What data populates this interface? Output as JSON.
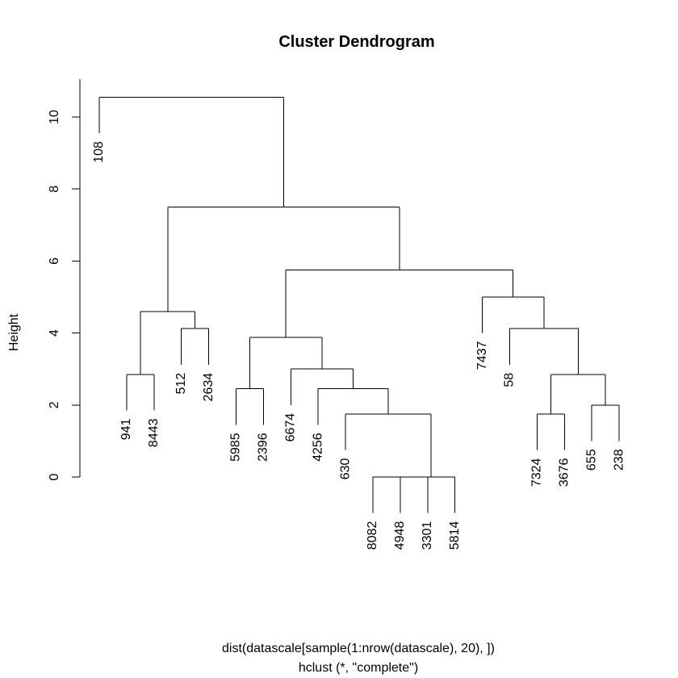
{
  "chart_data": {
    "type": "dendrogram",
    "title": "Cluster Dendrogram",
    "ylabel": "Height",
    "xlabel": "dist(datascale[sample(1:nrow(datascale), 20), ])",
    "sublabel": "hclust (*, \"complete\")",
    "ylim": [
      0,
      10
    ],
    "yticks": [
      {
        "value": 0,
        "label": "0"
      },
      {
        "value": 2,
        "label": "2"
      },
      {
        "value": 4,
        "label": "4"
      },
      {
        "value": 6,
        "label": "6"
      },
      {
        "value": 8,
        "label": "8"
      },
      {
        "value": 10,
        "label": "10"
      }
    ],
    "leaves": [
      "108",
      "941",
      "8443",
      "512",
      "2634",
      "5985",
      "2396",
      "6674",
      "4256",
      "630",
      "8082",
      "4948",
      "3301",
      "5814",
      "7437",
      "58",
      "7324",
      "3676",
      "655",
      "238"
    ],
    "merges": [
      {
        "a": "8082",
        "b": "4948",
        "height": 0.0
      },
      {
        "a": "m1",
        "b": "3301",
        "height": 0.0
      },
      {
        "a": "m2",
        "b": "5814",
        "height": 0.0
      },
      {
        "a": "630",
        "b": "m3",
        "height": 1.75
      },
      {
        "a": "4256",
        "b": "m4",
        "height": 2.45
      },
      {
        "a": "6674",
        "b": "m5",
        "height": 3.0
      },
      {
        "a": "5985",
        "b": "2396",
        "height": 2.45
      },
      {
        "a": "m7",
        "b": "m6",
        "height": 3.88
      },
      {
        "a": "941",
        "b": "8443",
        "height": 2.85
      },
      {
        "a": "512",
        "b": "2634",
        "height": 4.12
      },
      {
        "a": "m9",
        "b": "m10",
        "height": 4.6
      },
      {
        "a": "7324",
        "b": "3676",
        "height": 1.75
      },
      {
        "a": "655",
        "b": "238",
        "height": 2.0
      },
      {
        "a": "m12",
        "b": "m13",
        "height": 2.85
      },
      {
        "a": "58",
        "b": "m14",
        "height": 4.12
      },
      {
        "a": "7437",
        "b": "m15",
        "height": 5.0
      },
      {
        "a": "m8",
        "b": "m16",
        "height": 5.75
      },
      {
        "a": "m11",
        "b": "m17",
        "height": 7.5
      },
      {
        "a": "108",
        "b": "m18",
        "height": 10.55
      }
    ],
    "leaf_hang_height": 1.0
  }
}
